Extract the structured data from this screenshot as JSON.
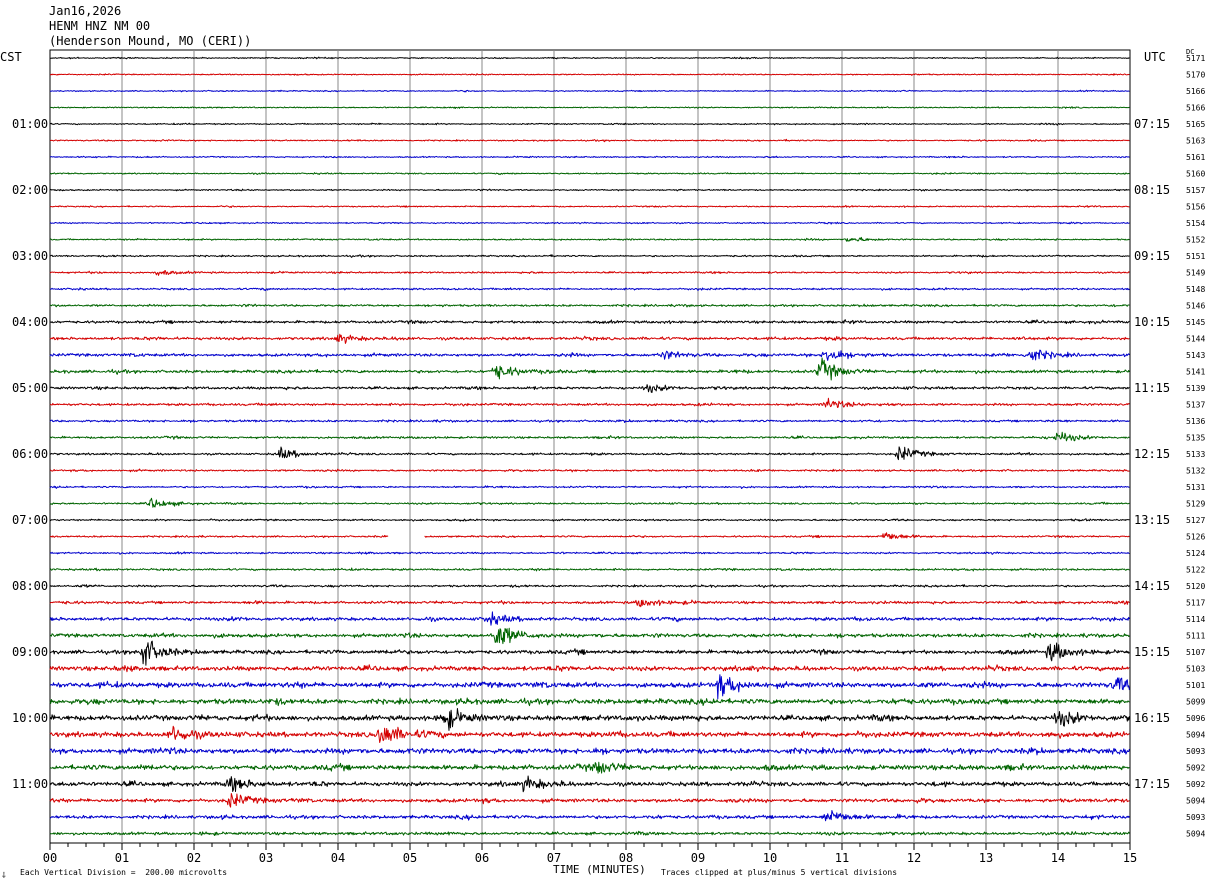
{
  "header": {
    "date": "Jan16,2026",
    "channel": "HENM HNZ NM 00",
    "location": "(Henderson Mound, MO (CERI))"
  },
  "left_timezone": "CST",
  "right_timezone": "UTC",
  "dc_label": "DC",
  "footer": {
    "scale_note": "Each Vertical Division =  200.00 microvolts",
    "clip_note": "Traces clipped at plus/minus 5 vertical divisions",
    "corner_mark": "⸸"
  },
  "colors": [
    "#000000",
    "#d40000",
    "#0000cc",
    "#006400"
  ],
  "chart_data": {
    "type": "line",
    "title": "",
    "xlabel": "TIME (MINUTES)",
    "ylabel": "",
    "xlim": [
      0,
      15
    ],
    "x_ticks": [
      "00",
      "01",
      "02",
      "03",
      "04",
      "05",
      "06",
      "07",
      "08",
      "09",
      "10",
      "11",
      "12",
      "13",
      "14",
      "15"
    ],
    "grid": true,
    "left_hour_labels": [
      "01:00",
      "02:00",
      "03:00",
      "04:00",
      "05:00",
      "06:00",
      "07:00",
      "08:00",
      "09:00",
      "10:00",
      "11:00"
    ],
    "right_hour_labels": [
      "07:15",
      "08:15",
      "09:15",
      "10:15",
      "11:15",
      "12:15",
      "13:15",
      "14:15",
      "15:15",
      "16:15",
      "17:15"
    ],
    "hour_label_rows": [
      4,
      8,
      12,
      16,
      20,
      24,
      28,
      32,
      36,
      40,
      44
    ],
    "dc_offsets": [
      "5171",
      "5170",
      "5166",
      "5166",
      "5165",
      "5163",
      "5161",
      "5160",
      "5157",
      "5156",
      "5154",
      "5152",
      "5151",
      "5149",
      "5148",
      "5146",
      "5145",
      "5144",
      "5143",
      "5141",
      "5139",
      "5137",
      "5136",
      "5135",
      "5133",
      "5132",
      "5131",
      "5129",
      "5127",
      "5126",
      "5124",
      "5122",
      "5120",
      "5117",
      "5114",
      "5111",
      "5107",
      "5103",
      "5101",
      "5099",
      "5096",
      "5094",
      "5093",
      "5092",
      "5092",
      "5094",
      "5093",
      "5094"
    ],
    "trace_activity": [
      0.9,
      0.9,
      0.9,
      0.9,
      1,
      1,
      1,
      1,
      1,
      1,
      1,
      1.1,
      1.2,
      1.3,
      1.4,
      1.6,
      2,
      2.2,
      2.2,
      2.3,
      2,
      1.8,
      1.6,
      1.6,
      1.5,
      1.4,
      1.3,
      1.3,
      1.3,
      1.3,
      1.3,
      1.5,
      1.5,
      2,
      2.6,
      2.8,
      3,
      3.5,
      4,
      4,
      4,
      4,
      4,
      3.8,
      3.2,
      2.8,
      2.6,
      2.2
    ],
    "events": [
      {
        "row": 11,
        "minute": 11.1,
        "amplitude": 3
      },
      {
        "row": 13,
        "minute": 1.5,
        "amplitude": 3
      },
      {
        "row": 17,
        "minute": 4.0,
        "amplitude": 4
      },
      {
        "row": 18,
        "minute": 8.5,
        "amplitude": 5
      },
      {
        "row": 18,
        "minute": 10.8,
        "amplitude": 9
      },
      {
        "row": 18,
        "minute": 13.6,
        "amplitude": 8
      },
      {
        "row": 19,
        "minute": 6.2,
        "amplitude": 8
      },
      {
        "row": 19,
        "minute": 10.7,
        "amplitude": 12
      },
      {
        "row": 20,
        "minute": 8.3,
        "amplitude": 4
      },
      {
        "row": 21,
        "minute": 10.8,
        "amplitude": 6
      },
      {
        "row": 23,
        "minute": 14.0,
        "amplitude": 6
      },
      {
        "row": 24,
        "minute": 3.2,
        "amplitude": 6
      },
      {
        "row": 24,
        "minute": 11.8,
        "amplitude": 8
      },
      {
        "row": 27,
        "minute": 1.4,
        "amplitude": 6
      },
      {
        "row": 29,
        "minute": 11.6,
        "amplitude": 5
      },
      {
        "row": 33,
        "minute": 8.2,
        "amplitude": 5
      },
      {
        "row": 34,
        "minute": 6.1,
        "amplitude": 6
      },
      {
        "row": 35,
        "minute": 6.2,
        "amplitude": 14
      },
      {
        "row": 36,
        "minute": 1.3,
        "amplitude": 14
      },
      {
        "row": 36,
        "minute": 13.9,
        "amplitude": 10
      },
      {
        "row": 38,
        "minute": 9.3,
        "amplitude": 11
      },
      {
        "row": 38,
        "minute": 14.8,
        "amplitude": 8
      },
      {
        "row": 40,
        "minute": 5.5,
        "amplitude": 10
      },
      {
        "row": 40,
        "minute": 14.0,
        "amplitude": 7
      },
      {
        "row": 41,
        "minute": 4.6,
        "amplitude": 13
      },
      {
        "row": 41,
        "minute": 1.7,
        "amplitude": 7
      },
      {
        "row": 43,
        "minute": 7.6,
        "amplitude": 7
      },
      {
        "row": 44,
        "minute": 2.5,
        "amplitude": 8
      },
      {
        "row": 44,
        "minute": 6.6,
        "amplitude": 7
      },
      {
        "row": 45,
        "minute": 2.5,
        "amplitude": 7
      },
      {
        "row": 46,
        "minute": 10.8,
        "amplitude": 8
      }
    ],
    "data_gaps": [
      {
        "row": 29,
        "from_minute": 4.7,
        "to_minute": 5.2
      }
    ]
  }
}
